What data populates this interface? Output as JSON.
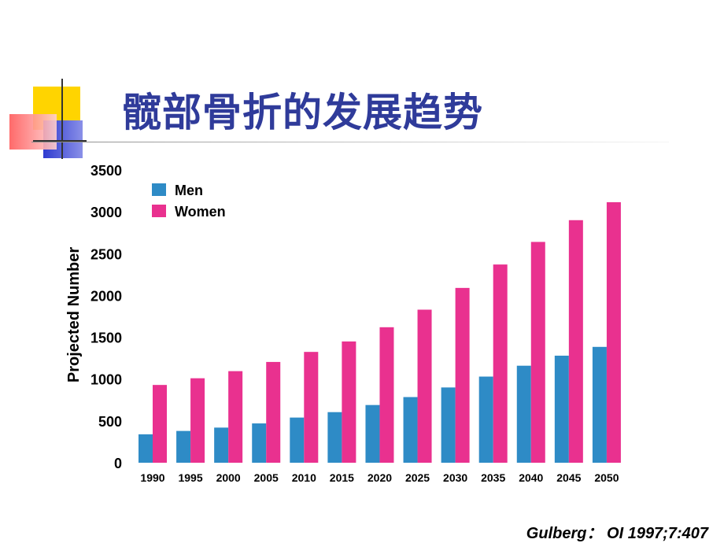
{
  "title": "髋部骨折的发展趋势",
  "citation": "Gulberg： OI 1997;7:407",
  "colors": {
    "title": "#2f3b9a",
    "men": "#2e8bc6",
    "women": "#e9318f"
  },
  "chart_data": {
    "type": "bar",
    "ylabel": "Projected Number",
    "xlabel": "",
    "ylim": [
      0,
      3500
    ],
    "yticks": [
      0,
      500,
      1000,
      1500,
      2000,
      2500,
      3000,
      3500
    ],
    "grid": false,
    "legend_position": "top-left",
    "categories": [
      "1990",
      "1995",
      "2000",
      "2005",
      "2010",
      "2015",
      "2020",
      "2025",
      "2030",
      "2035",
      "2040",
      "2045",
      "2050"
    ],
    "series": [
      {
        "name": "Men",
        "values": [
          340,
          380,
          420,
          470,
          540,
          605,
          690,
          785,
          900,
          1030,
          1160,
          1280,
          1385
        ]
      },
      {
        "name": "Women",
        "values": [
          930,
          1010,
          1095,
          1205,
          1325,
          1450,
          1620,
          1830,
          2090,
          2370,
          2640,
          2900,
          3115
        ]
      }
    ]
  }
}
